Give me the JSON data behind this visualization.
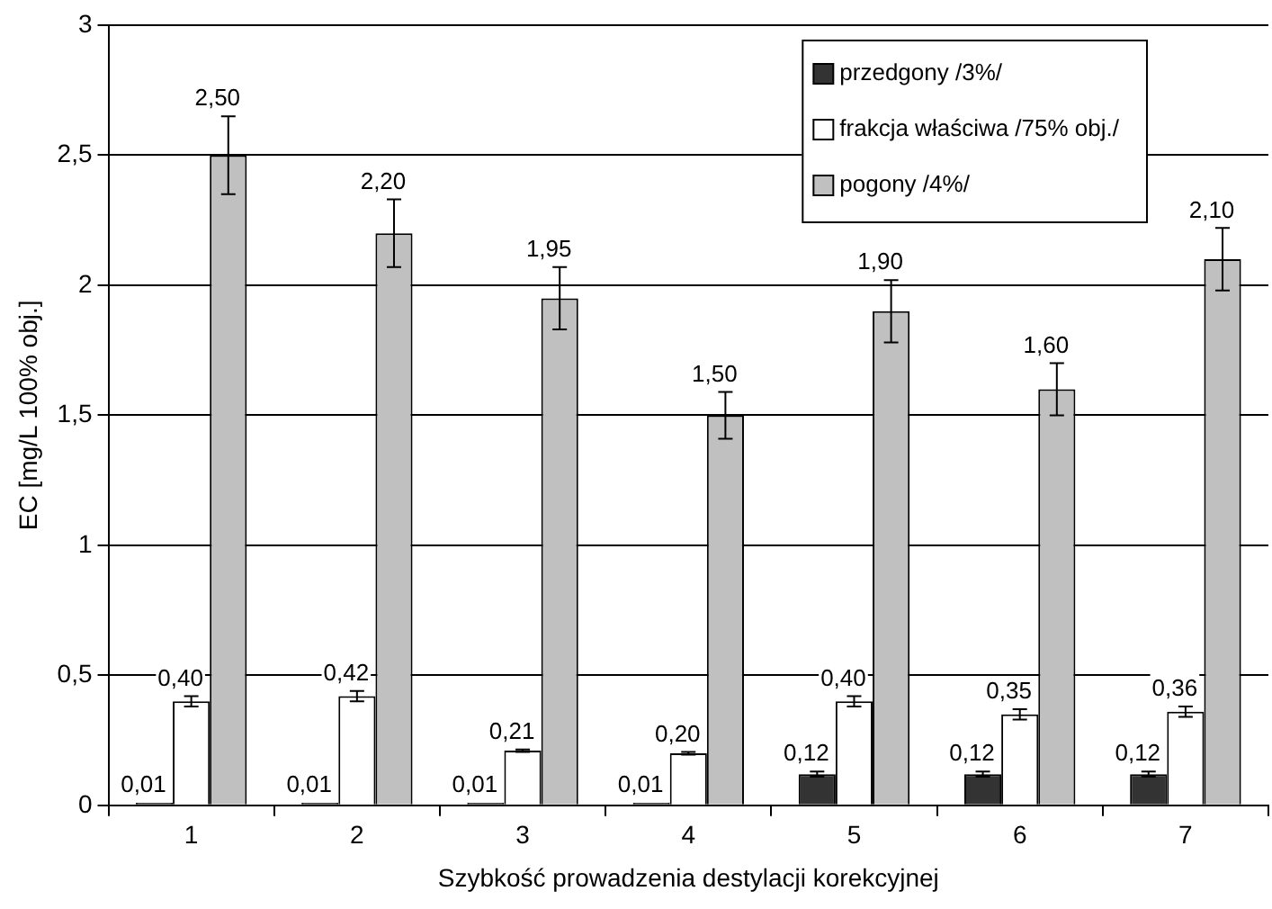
{
  "chart_data": {
    "type": "bar",
    "xlabel": "Szybkość prowadzenia destylacji korekcyjnej",
    "ylabel": "EC [mg/L 100% obj.]",
    "categories": [
      "1",
      "2",
      "3",
      "4",
      "5",
      "6",
      "7"
    ],
    "series": [
      {
        "name": "przedgony /3%/",
        "color": "#333333",
        "values": [
          0.01,
          0.01,
          0.01,
          0.01,
          0.12,
          0.12,
          0.12
        ],
        "errors": [
          null,
          null,
          null,
          null,
          0.01,
          0.01,
          0.01
        ],
        "value_labels": [
          "0,01",
          "0,01",
          "0,01",
          "0,01",
          "0,12",
          "0,12",
          "0,12"
        ]
      },
      {
        "name": "frakcja właściwa /75% obj./",
        "color": "#ffffff",
        "values": [
          0.4,
          0.42,
          0.21,
          0.2,
          0.4,
          0.35,
          0.36
        ],
        "errors": [
          0.02,
          0.02,
          0.005,
          0.005,
          0.02,
          0.02,
          0.02
        ],
        "value_labels": [
          "0,40",
          "0,42",
          "0,21",
          "0,20",
          "0,40",
          "0,35",
          "0,36"
        ]
      },
      {
        "name": "pogony /4%/",
        "color": "#c0c0c0",
        "values": [
          2.5,
          2.2,
          1.95,
          1.5,
          1.9,
          1.6,
          2.1
        ],
        "errors": [
          0.15,
          0.13,
          0.12,
          0.09,
          0.12,
          0.1,
          0.12
        ],
        "value_labels": [
          "2,50",
          "2,20",
          "1,95",
          "1,50",
          "1,90",
          "1,60",
          "2,10"
        ]
      }
    ],
    "ylim": [
      0,
      3
    ],
    "yticks": [
      0,
      {
        "value": 0.5,
        "label": "0,5"
      },
      1,
      {
        "value": 1.5,
        "label": "1,5"
      },
      2,
      {
        "value": 2.5,
        "label": "2,5"
      },
      3
    ],
    "grid": "y",
    "legend": "top right"
  }
}
